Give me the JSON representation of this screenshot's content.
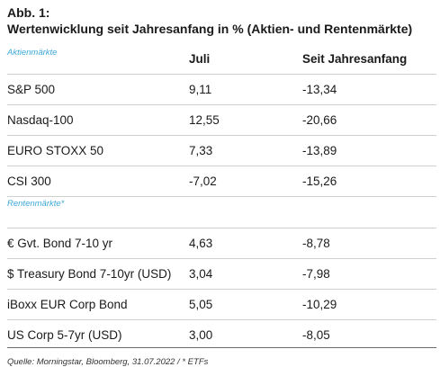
{
  "figure": {
    "label": "Abb. 1:",
    "title": "Wertenwicklung seit Jahresanfang in % (Aktien- und Rentenmärkte)"
  },
  "table": {
    "columns": [
      "Juli",
      "Seit Jahresanfang"
    ],
    "sections": [
      {
        "label": "Aktienmärkte",
        "rows": [
          {
            "name": "S&P 500",
            "juli": "9,11",
            "ytd": "-13,34"
          },
          {
            "name": "Nasdaq-100",
            "juli": "12,55",
            "ytd": "-20,66"
          },
          {
            "name": "EURO STOXX 50",
            "juli": "7,33",
            "ytd": "-13,89"
          },
          {
            "name": "CSI 300",
            "juli": "-7,02",
            "ytd": "-15,26"
          }
        ]
      },
      {
        "label": "Rentenmärkte*",
        "rows": [
          {
            "name": "€ Gvt. Bond 7-10 yr",
            "juli": "4,63",
            "ytd": "-8,78"
          },
          {
            "name": "$ Treasury Bond 7-10yr (USD)",
            "juli": "3,04",
            "ytd": "-7,98"
          },
          {
            "name": "iBoxx EUR Corp Bond",
            "juli": "5,05",
            "ytd": "-10,29"
          },
          {
            "name": "US Corp 5-7yr (USD)",
            "juli": "3,00",
            "ytd": "-8,05"
          }
        ]
      }
    ]
  },
  "source": "Quelle: Morningstar, Bloomberg, 31.07.2022 / * ETFs",
  "colors": {
    "section_label": "#3ea8d6",
    "row_divider": "#cfcfcf",
    "bottom_rule": "#6a6a6a"
  }
}
